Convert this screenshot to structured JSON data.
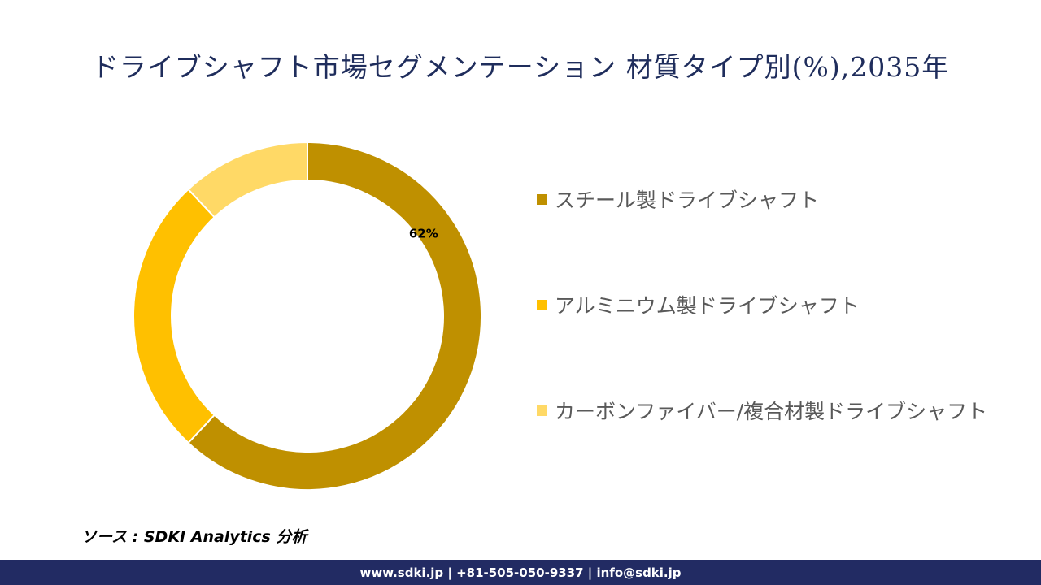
{
  "title": "ドライブシャフト市場セグメンテーション 材質タイプ別(%),2035年",
  "chart_data": {
    "type": "pie",
    "donut": true,
    "title": "ドライブシャフト市場セグメンテーション 材質タイプ別(%),2035年",
    "legend_position": "right",
    "categories": [
      "スチール製ドライブシャフト",
      "アルミニウム製ドライブシャフト",
      "カーボンファイバー/複合材製ドライブシャフト"
    ],
    "values": [
      62,
      26,
      12
    ],
    "colors": [
      "#bf9000",
      "#ffc000",
      "#ffd966"
    ],
    "data_labels": [
      "62%",
      "",
      ""
    ]
  },
  "source": "ソース : SDKI Analytics 分析",
  "footer": "www.sdki.jp | +81-505-050-9337 | info@sdki.jp"
}
